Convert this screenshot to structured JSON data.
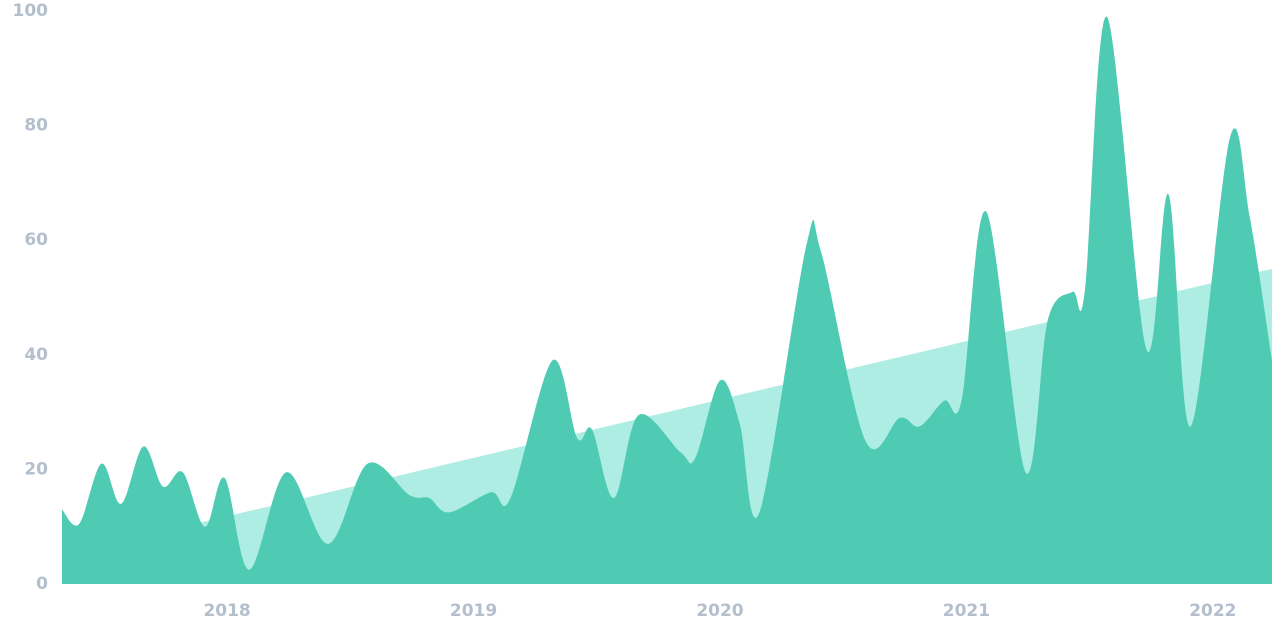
{
  "chart_data": {
    "type": "area",
    "x": [
      2017.33,
      2017.4,
      2017.49,
      2017.57,
      2017.66,
      2017.74,
      2017.82,
      2017.91,
      2017.99,
      2018.09,
      2018.24,
      2018.41,
      2018.57,
      2018.74,
      2018.82,
      2018.9,
      2019.07,
      2019.15,
      2019.32,
      2019.42,
      2019.48,
      2019.57,
      2019.67,
      2019.84,
      2019.9,
      2020.0,
      2020.08,
      2020.16,
      2020.35,
      2020.41,
      2020.59,
      2020.73,
      2020.81,
      2020.91,
      2020.98,
      2021.08,
      2021.24,
      2021.33,
      2021.43,
      2021.48,
      2021.57,
      2021.73,
      2021.82,
      2021.91,
      2022.07,
      2022.15,
      2022.24
    ],
    "series": [
      {
        "color": "#aeede3",
        "x": [
          2017.33,
          2022.24
        ],
        "values": [
          5,
          55
        ]
      },
      {
        "color": "#4fcbb3",
        "values": [
          13,
          10.5,
          21,
          14,
          24,
          17,
          19.5,
          10,
          18.5,
          2.5,
          19.5,
          7,
          21,
          15.5,
          15,
          12.5,
          16,
          15,
          39,
          25.5,
          27,
          15,
          29.5,
          23,
          22,
          35.5,
          28,
          12.5,
          59,
          58,
          25,
          29,
          27.5,
          32,
          32,
          65,
          19.5,
          46,
          51,
          51,
          99,
          41,
          68,
          27.5,
          78,
          64,
          39
        ]
      }
    ],
    "xlim": [
      2017.33,
      2022.24
    ],
    "xticks": [
      2018,
      2019,
      2020,
      2021,
      2022
    ],
    "ylim": [
      0,
      100
    ],
    "yticks": [
      0,
      20,
      40,
      60,
      80,
      100
    ],
    "grid": false
  }
}
